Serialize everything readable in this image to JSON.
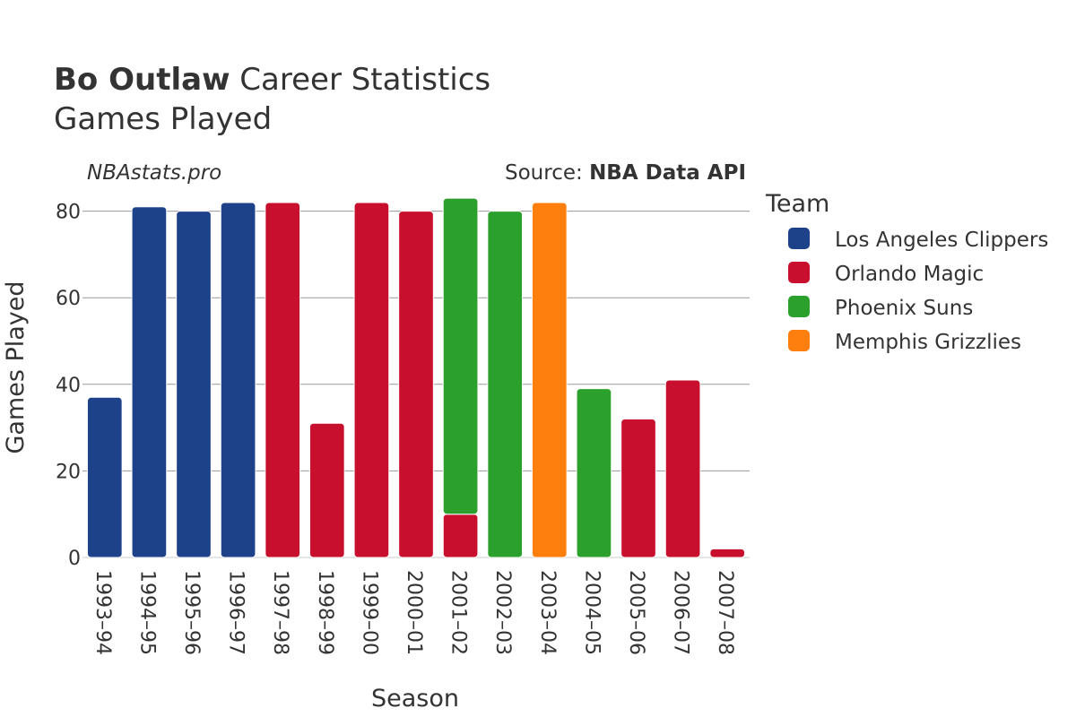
{
  "header": {
    "player_name": "Bo Outlaw",
    "title_rest": "Career Statistics",
    "subtitle": "Games Played",
    "site": "NBAstats.pro",
    "source_prefix": "Source: ",
    "source_name": "NBA Data API"
  },
  "legend": {
    "title": "Team"
  },
  "colors": {
    "Los Angeles Clippers": "#1d428a",
    "Orlando Magic": "#c8102e",
    "Phoenix Suns": "#2ca02c",
    "Memphis Grizzlies": "#ff7f0e",
    "grid": "#cccccc"
  },
  "chart_data": {
    "type": "bar",
    "barmode": "stack",
    "title": "Bo Outlaw Career Statistics",
    "subtitle": "Games Played",
    "xlabel": "Season",
    "ylabel": "Games Played",
    "ylim": [
      0,
      85
    ],
    "yticks": [
      0,
      20,
      40,
      60,
      80
    ],
    "grid": true,
    "legend_position": "right",
    "categories": [
      "1993–94",
      "1994–95",
      "1995–96",
      "1996–97",
      "1997–98",
      "1998–99",
      "1999–00",
      "2000–01",
      "2001–02",
      "2002–03",
      "2003–04",
      "2004–05",
      "2005–06",
      "2006–07",
      "2007–08"
    ],
    "series": [
      {
        "name": "Los Angeles Clippers",
        "values": [
          37,
          81,
          80,
          82,
          0,
          0,
          0,
          0,
          0,
          0,
          0,
          0,
          0,
          0,
          0
        ]
      },
      {
        "name": "Orlando Magic",
        "values": [
          0,
          0,
          0,
          0,
          82,
          31,
          82,
          80,
          10,
          0,
          0,
          0,
          32,
          41,
          2
        ]
      },
      {
        "name": "Phoenix Suns",
        "values": [
          0,
          0,
          0,
          0,
          0,
          0,
          0,
          0,
          73,
          80,
          0,
          39,
          0,
          0,
          0
        ]
      },
      {
        "name": "Memphis Grizzlies",
        "values": [
          0,
          0,
          0,
          0,
          0,
          0,
          0,
          0,
          0,
          0,
          82,
          0,
          0,
          0,
          0
        ]
      }
    ]
  }
}
